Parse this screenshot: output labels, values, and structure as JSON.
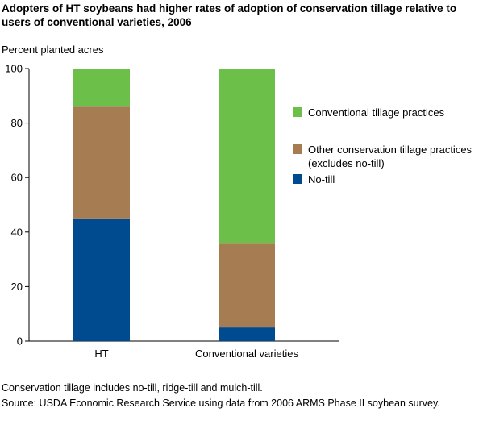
{
  "title": "Adopters of HT soybeans had higher rates of adoption of conservation tillage relative to users of conventional varieties, 2006",
  "note": "Conservation tillage includes no-till, ridge-till and mulch-till.",
  "source": "Source: USDA Economic Research Service using data from 2006 ARMS Phase II soybean survey.",
  "chart_data": {
    "type": "bar",
    "stacked": true,
    "title": "Adopters of HT soybeans had higher rates of adoption of conservation tillage relative to users of conventional varieties, 2006",
    "ylabel": "Percent planted acres",
    "xlabel": "",
    "ylim": [
      0,
      100
    ],
    "yticks": [
      0,
      20,
      40,
      60,
      80,
      100
    ],
    "categories": [
      "HT",
      "Conventional varieties"
    ],
    "series": [
      {
        "name": "No-till",
        "color": "#004a8f",
        "values": [
          45,
          5
        ]
      },
      {
        "name": "Other conservation tillage practices (excludes no-till)",
        "color": "#a67c52",
        "values": [
          41,
          31
        ]
      },
      {
        "name": "Conventional tillage practices",
        "color": "#6cc04a",
        "values": [
          14,
          64
        ]
      }
    ],
    "legend": {
      "placement": "right",
      "order": [
        2,
        1,
        0
      ],
      "labels": [
        [
          "Conventional tillage practices"
        ],
        [
          "Other conservation tillage practices",
          "(excludes no-till)"
        ],
        [
          "No-till"
        ]
      ]
    },
    "grid": false
  }
}
